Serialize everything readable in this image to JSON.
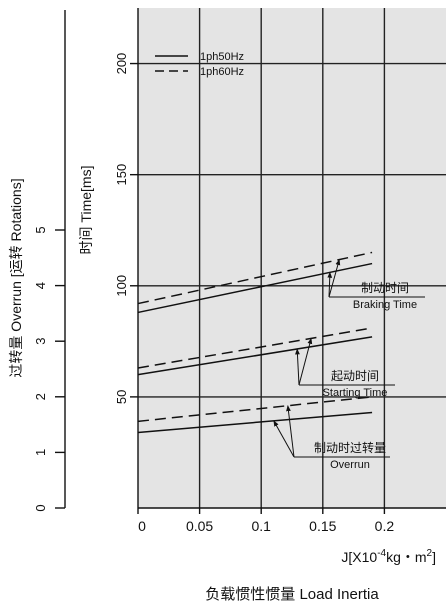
{
  "chart_data": {
    "type": "line",
    "x_axis": {
      "label_prefix": "J[X10",
      "label_exponent": "-4",
      "label_mid": "kg・m",
      "label_square": "2",
      "label_suffix": "]",
      "caption": "负载惯性惯量 Load Inertia",
      "ticks": [
        "0",
        "0.05",
        "0.1",
        "0.15",
        "0.2"
      ],
      "tick_values": [
        0,
        0.05,
        0.1,
        0.15,
        0.2
      ],
      "range": [
        0,
        0.25
      ]
    },
    "y_axis": {
      "label": "时间 Time[ms]",
      "ticks": [
        "50",
        "100",
        "150",
        "200"
      ],
      "tick_values": [
        50,
        100,
        150,
        200
      ],
      "range": [
        0,
        225
      ]
    },
    "y2_axis": {
      "label": "过转量 Overrun [运转 Rotations]",
      "ticks": [
        "0",
        "1",
        "2",
        "3",
        "4",
        "5"
      ],
      "tick_values": [
        0,
        1,
        2,
        3,
        4,
        5
      ],
      "range": [
        0,
        5
      ]
    },
    "grid": true,
    "legend": {
      "placement": "top-left",
      "entries": [
        {
          "label": "1ph50Hz",
          "style": "solid"
        },
        {
          "label": "1ph60Hz",
          "style": "dashed"
        }
      ]
    },
    "series": [
      {
        "group": "braking",
        "style": "solid",
        "x": [
          0,
          0.19
        ],
        "y": [
          88,
          110
        ]
      },
      {
        "group": "braking",
        "style": "dashed",
        "x": [
          0,
          0.19
        ],
        "y": [
          92,
          115
        ]
      },
      {
        "group": "starting",
        "style": "solid",
        "x": [
          0,
          0.19
        ],
        "y": [
          60,
          77
        ]
      },
      {
        "group": "starting",
        "style": "dashed",
        "x": [
          0,
          0.19
        ],
        "y": [
          63,
          81
        ]
      },
      {
        "group": "overrun",
        "style": "solid",
        "x": [
          0,
          0.19
        ],
        "y": [
          34,
          43
        ]
      },
      {
        "group": "overrun",
        "style": "dashed",
        "x": [
          0,
          0.19
        ],
        "y": [
          39,
          50
        ]
      }
    ],
    "annotations": [
      {
        "group": "braking",
        "text_cn": "制动时间",
        "text_en": "Braking Time"
      },
      {
        "group": "starting",
        "text_cn": "起动时间",
        "text_en": "Starting Time"
      },
      {
        "group": "overrun",
        "text_cn": "制动时过转量",
        "text_en": "Overrun"
      }
    ]
  }
}
